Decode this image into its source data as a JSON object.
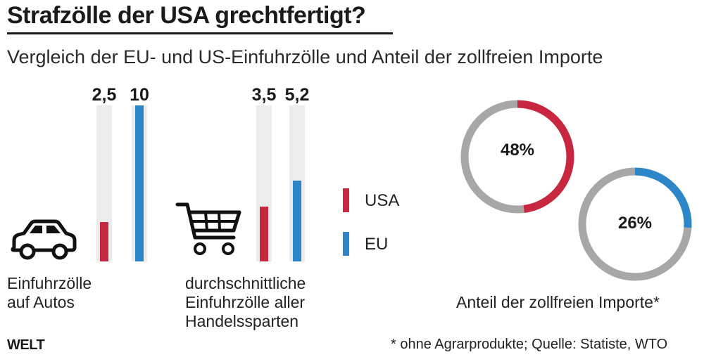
{
  "header": {
    "title": "Strafzölle der USA grechtfertigt?",
    "subtitle": "Vergleich der EU- und US-Einfuhrzölle und Anteil der zollfreien Importe"
  },
  "colors": {
    "usa": "#c8283f",
    "eu": "#2c86c8",
    "track": "#ececec",
    "donut_rest": "#a7a7a7"
  },
  "chart_data": [
    {
      "type": "bar",
      "title": "",
      "categories": [
        "Einfuhrzölle auf Autos",
        "durchschnittliche Einfuhrzölle aller Handelssparten"
      ],
      "category_lines": [
        [
          "Einfuhrzölle",
          "auf Autos"
        ],
        [
          "durchschnittliche",
          "Einfuhrzölle aller",
          "Handelssparten"
        ]
      ],
      "series": [
        {
          "name": "USA",
          "values": [
            2.5,
            3.5
          ],
          "labels": [
            "2,5",
            "3,5"
          ]
        },
        {
          "name": "EU",
          "values": [
            10,
            5.2
          ],
          "labels": [
            "10",
            "5,2"
          ]
        }
      ],
      "ylim": [
        0,
        10
      ],
      "legend": "right",
      "grid": false
    },
    {
      "type": "pie",
      "title": "",
      "caption": "Anteil der zollfreien Importe*",
      "slices": [
        {
          "name": "USA",
          "value": 48,
          "label": "48%"
        },
        {
          "name": "EU",
          "value": 26,
          "label": "26%"
        }
      ]
    }
  ],
  "legend": {
    "usa": "USA",
    "eu": "EU"
  },
  "icons": [
    "car-icon",
    "shopping-cart-icon"
  ],
  "footer": {
    "logo": "WELT",
    "footnote": "* ohne Agrarprodukte; Quelle: Statiste, WTO"
  }
}
